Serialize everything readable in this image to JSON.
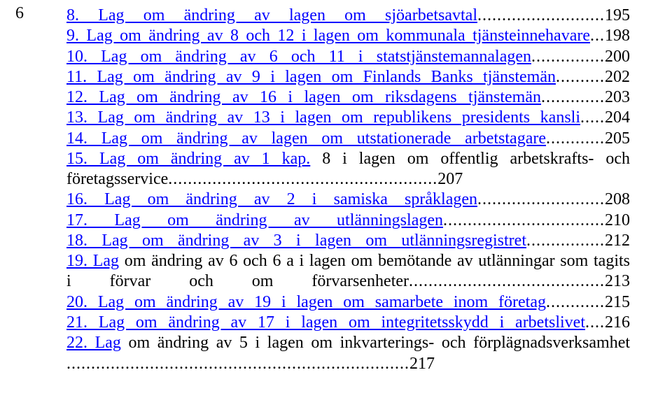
{
  "page_number": "6",
  "colors": {
    "link": "#0000ff",
    "text": "#000000",
    "background": "#ffffff"
  },
  "font": {
    "family": "Times New Roman",
    "size_pt": 18
  },
  "entries": [
    {
      "num": "8.",
      "title": "Lag om ändring av lagen om sjöarbetsavtal",
      "page": "195",
      "wrap": false
    },
    {
      "num": "9.",
      "title": "Lag om ändring av 8 och 12 i lagen om kommunala tjänsteinnehavare",
      "page": "198",
      "wrap": false
    },
    {
      "num": "10.",
      "title": "Lag om ändring av 6 och 11 i statstjänstemannalagen",
      "page": "200",
      "wrap": false
    },
    {
      "num": "11.",
      "title": "Lag om ändring av 9 i lagen om Finlands Banks tjänstemän",
      "page": "202",
      "wrap": false
    },
    {
      "num": "12.",
      "title": "Lag om ändring av 16 i lagen om riksdagens tjänstemän",
      "page": "203",
      "wrap": false
    },
    {
      "num": "13.",
      "title": "Lag om ändring av 13 i lagen om republikens presidents kansli",
      "page": "204",
      "wrap": false
    },
    {
      "num": "14.",
      "title": "Lag om ändring av lagen om utstationerade arbetstagare",
      "page": "205",
      "wrap": false
    },
    {
      "num": "15.",
      "title_a": "Lag om ändring av 1 kap.",
      "title_b": "8 i lagen om offentlig arbetskrafts- och",
      "cont": "företagsservice",
      "page": "207",
      "wrap": true
    },
    {
      "num": "16.",
      "title": "Lag om ändring av 2 i samiska språklagen",
      "page": "208",
      "wrap": false
    },
    {
      "num": "17.",
      "title": "Lag om ändring av utlänningslagen",
      "page": "210",
      "wrap": false
    },
    {
      "num": "18.",
      "title": "Lag om ändring av 3 i lagen om utlänningsregistret",
      "page": "212",
      "wrap": false
    },
    {
      "num": "19.",
      "title_a": "Lag",
      "title_b": "om ändring av 6 och 6 a i lagen om bemötande av utlänningar som tagits",
      "cont": "i förvar och om förvarsenheter",
      "page": "213",
      "wrap": true
    },
    {
      "num": "20.",
      "title": "Lag om ändring av 19 i lagen om samarbete inom företag",
      "page": "215",
      "wrap": false
    },
    {
      "num": "21.",
      "title": "Lag om ändring av 17 i lagen om integritetsskydd i arbetslivet",
      "page": "216",
      "wrap": false
    },
    {
      "num": "22.",
      "title_a": "Lag",
      "title_b": "om ändring av 5 i lagen om inkvarterings- och förplägnadsverksamhet",
      "cont": "",
      "page": "217",
      "wrap": true,
      "cont_only_dots": true
    }
  ]
}
